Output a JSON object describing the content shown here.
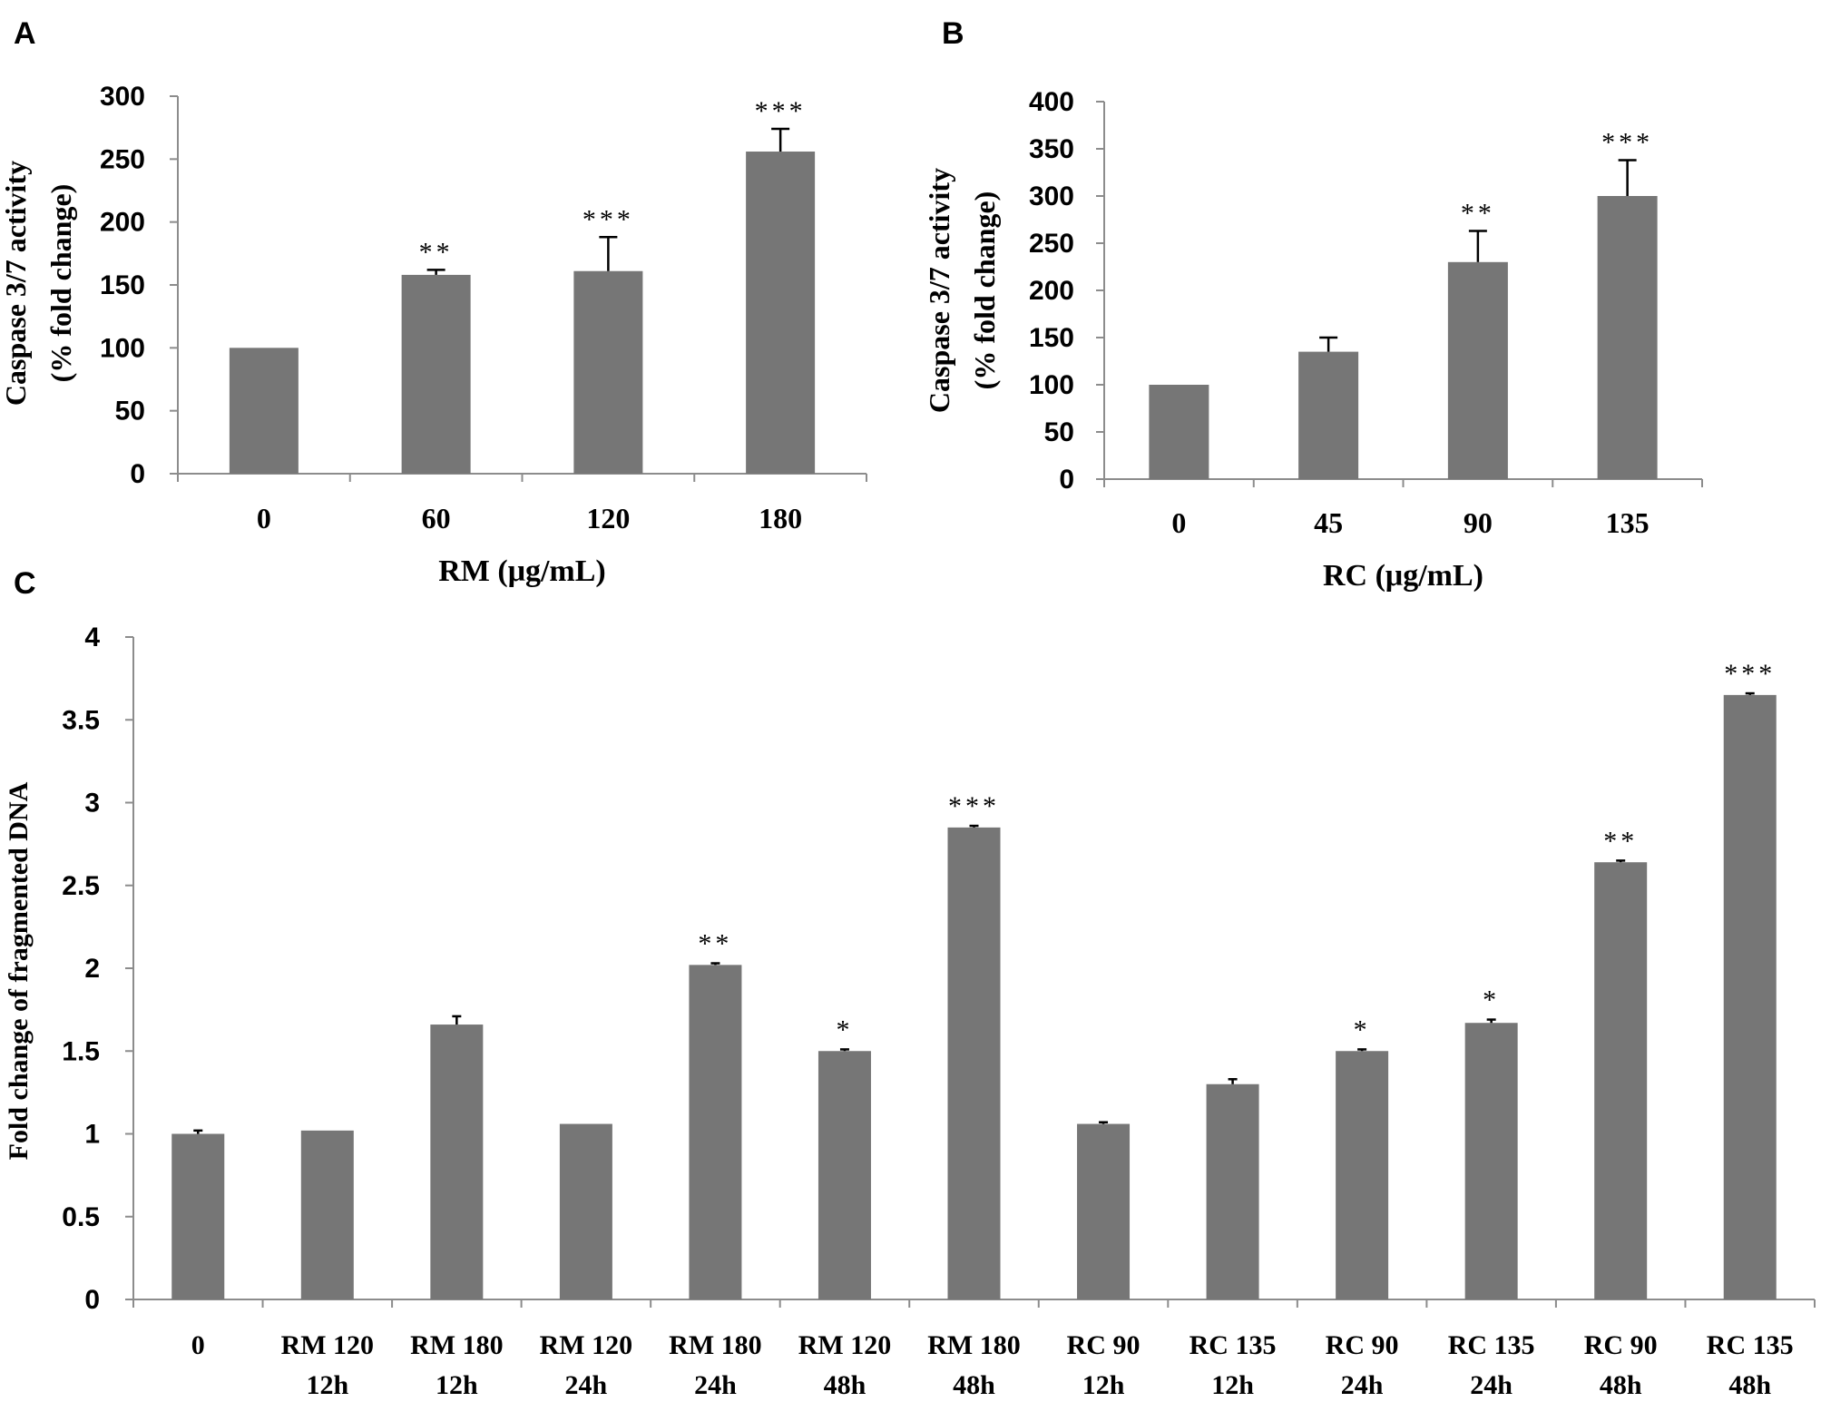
{
  "chart_data": [
    {
      "panel": "A",
      "type": "bar",
      "categories": [
        "0",
        "60",
        "120",
        "180"
      ],
      "values": [
        100,
        158,
        161,
        256
      ],
      "errors": [
        0,
        4,
        27,
        18
      ],
      "significance": [
        "",
        "**",
        "***",
        "***"
      ],
      "xlabel": "RM (μg/mL)",
      "ylabel_lines": [
        "Caspase  3/7 activity",
        "(%  fold  change)"
      ],
      "ylim": [
        0,
        300
      ],
      "yticks": [
        "0",
        "50",
        "100",
        "150",
        "200",
        "250",
        "300"
      ]
    },
    {
      "panel": "B",
      "type": "bar",
      "categories": [
        "0",
        "45",
        "90",
        "135"
      ],
      "values": [
        100,
        135,
        230,
        300
      ],
      "errors": [
        0,
        15,
        33,
        38
      ],
      "significance": [
        "",
        "",
        "**",
        "***"
      ],
      "xlabel": "RC (μg/mL)",
      "ylabel_lines": [
        "Caspase  3/7 activity",
        "(%  fold  change)"
      ],
      "ylim": [
        0,
        400
      ],
      "yticks": [
        "0",
        "50",
        "100",
        "150",
        "200",
        "250",
        "300",
        "350",
        "400"
      ]
    },
    {
      "panel": "C",
      "type": "bar",
      "categories": [
        [
          "0",
          ""
        ],
        [
          "RM 120",
          "12h"
        ],
        [
          "RM 180",
          "12h"
        ],
        [
          "RM 120",
          "24h"
        ],
        [
          "RM 180",
          "24h"
        ],
        [
          "RM 120",
          "48h"
        ],
        [
          "RM 180",
          "48h"
        ],
        [
          "RC 90",
          "12h"
        ],
        [
          "RC 135",
          "12h"
        ],
        [
          "RC 90",
          "24h"
        ],
        [
          "RC 135",
          "24h"
        ],
        [
          "RC 90",
          "48h"
        ],
        [
          "RC 135",
          "48h"
        ]
      ],
      "values": [
        1.0,
        1.02,
        1.66,
        1.06,
        2.02,
        1.5,
        2.85,
        1.06,
        1.3,
        1.5,
        1.67,
        2.64,
        3.65
      ],
      "errors": [
        0.02,
        0,
        0.05,
        0,
        0.01,
        0.01,
        0.01,
        0.01,
        0.03,
        0.01,
        0.02,
        0.01,
        0.01
      ],
      "significance": [
        "",
        "",
        "",
        "",
        "**",
        "*",
        "***",
        "",
        "",
        "*",
        "*",
        "**",
        "***"
      ],
      "xlabel": "",
      "ylabel_lines": [
        "Fold change of fragmented DNA"
      ],
      "ylim": [
        0,
        4
      ],
      "yticks": [
        "0",
        "0.5",
        "1",
        "1.5",
        "2",
        "2.5",
        "3",
        "3.5",
        "4"
      ]
    }
  ],
  "colors": {
    "bar": "#767676",
    "axis": "#8c8c8c",
    "error": "#000000",
    "text": "#000000"
  }
}
